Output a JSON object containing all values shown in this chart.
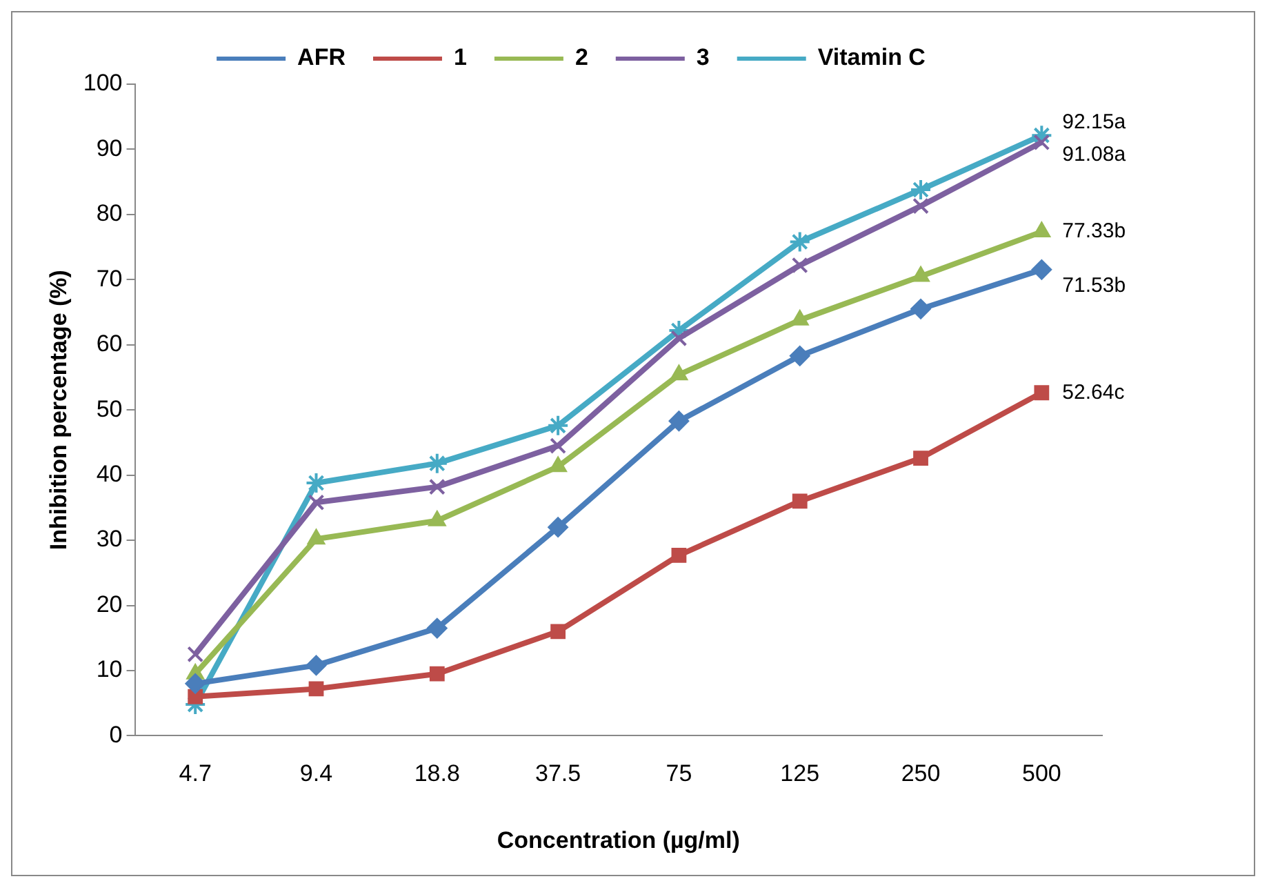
{
  "chart_data": {
    "type": "line",
    "xlabel": "Concentration (µg/ml)",
    "ylabel": "Inhibition percentage (%)",
    "categories": [
      "4.7",
      "9.4",
      "18.8",
      "37.5",
      "75",
      "125",
      "250",
      "500"
    ],
    "series": [
      {
        "name": "AFR",
        "color": "#4a7ebb",
        "marker": "diamond",
        "values": [
          8,
          10.8,
          16.5,
          32,
          48.3,
          58.3,
          65.5,
          71.53
        ]
      },
      {
        "name": "1",
        "color": "#be4b48",
        "marker": "square",
        "values": [
          6,
          7.2,
          9.5,
          16,
          27.7,
          36,
          42.6,
          52.64
        ]
      },
      {
        "name": "2",
        "color": "#98b954",
        "marker": "triangle",
        "values": [
          9.5,
          30.2,
          33,
          41.3,
          55.4,
          63.8,
          70.5,
          77.33
        ]
      },
      {
        "name": "3",
        "color": "#7d60a0",
        "marker": "cross",
        "values": [
          12.5,
          35.8,
          38.2,
          44.5,
          61,
          72.2,
          81.3,
          91.08
        ]
      },
      {
        "name": "Vitamin C",
        "color": "#46aac5",
        "marker": "cross",
        "values": [
          4.8,
          38.8,
          41.8,
          47.6,
          62.2,
          75.8,
          83.8,
          92.15
        ]
      }
    ],
    "ylim": [
      0,
      100
    ],
    "yticks": [
      0,
      10,
      20,
      30,
      40,
      50,
      60,
      70,
      80,
      90,
      100
    ],
    "grid": false,
    "legend": "top",
    "line_style": "solid",
    "annotations": [
      {
        "text": "92.15a",
        "x": "500",
        "y": 92.15
      },
      {
        "text": "91.08a",
        "x": "500",
        "y": 91.08
      },
      {
        "text": "77.33b",
        "x": "500",
        "y": 77.33
      },
      {
        "text": "71.53b",
        "x": "500",
        "y": 71.53
      },
      {
        "text": "52.64c",
        "x": "500",
        "y": 52.64
      }
    ]
  }
}
